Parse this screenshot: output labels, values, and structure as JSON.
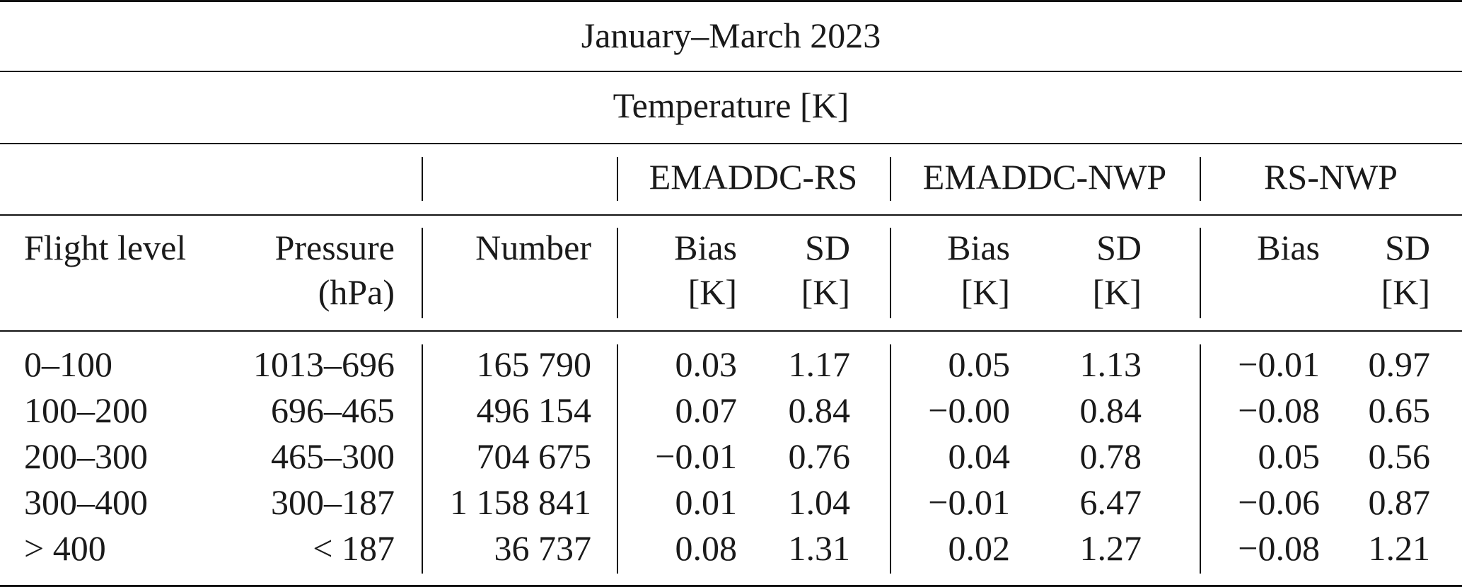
{
  "title": "January–March 2023",
  "subtitle": "Temperature [K]",
  "groups": [
    "EMADDC-RS",
    "EMADDC-NWP",
    "RS-NWP"
  ],
  "headers": {
    "flight_level": "Flight level",
    "pressure": [
      "Pressure",
      "(hPa)"
    ],
    "number": "Number",
    "bias": [
      "Bias",
      "[K]"
    ],
    "sd": [
      "SD",
      "[K]"
    ],
    "bias_rsnwp": [
      "Bias",
      ""
    ]
  },
  "rows": [
    [
      "0–100",
      "1013–696",
      "165 790",
      "0.03",
      "1.17",
      "0.05",
      "1.13",
      "−0.01",
      "0.97"
    ],
    [
      "100–200",
      "696–465",
      "496 154",
      "0.07",
      "0.84",
      "−0.00",
      "0.84",
      "−0.08",
      "0.65"
    ],
    [
      "200–300",
      "465–300",
      "704 675",
      "−0.01",
      "0.76",
      "0.04",
      "0.78",
      "0.05",
      "0.56"
    ],
    [
      "300–400",
      "300–187",
      "1 158 841",
      "0.01",
      "1.04",
      "−0.01",
      "6.47",
      "−0.06",
      "0.87"
    ],
    [
      "> 400",
      "< 187",
      "36 737",
      "0.08",
      "1.31",
      "0.02",
      "1.27",
      "−0.08",
      "1.21"
    ]
  ]
}
